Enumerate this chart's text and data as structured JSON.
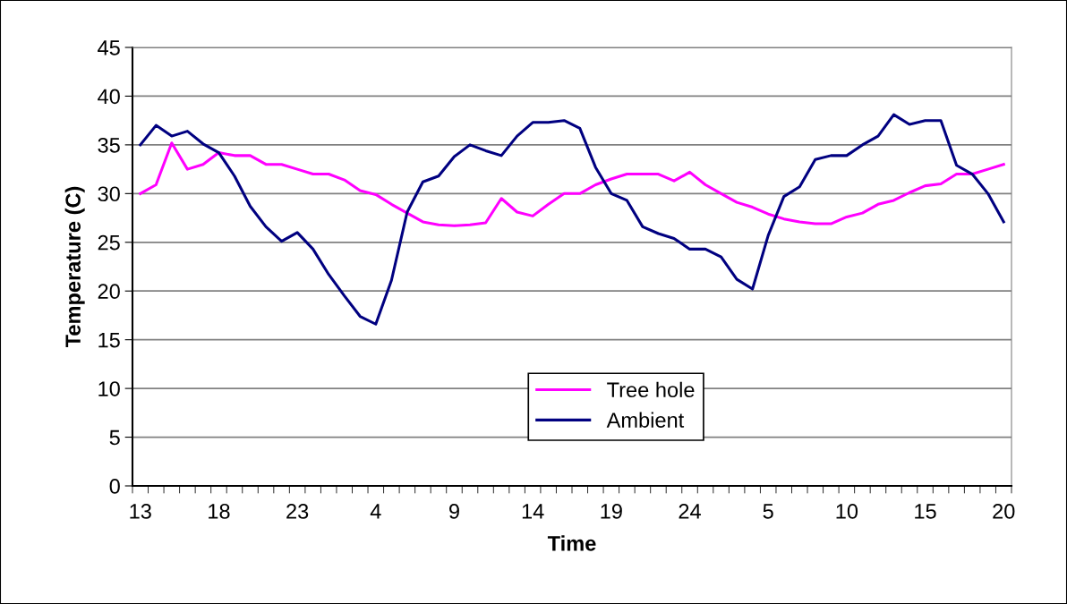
{
  "chart_data": {
    "type": "line",
    "xlabel": "Time",
    "ylabel": "Temperature (C)",
    "categories": [
      "13",
      null,
      null,
      null,
      null,
      "18",
      null,
      null,
      null,
      null,
      "23",
      null,
      null,
      null,
      null,
      "4",
      null,
      null,
      null,
      null,
      "9",
      null,
      null,
      null,
      null,
      "14",
      null,
      null,
      null,
      null,
      "19",
      null,
      null,
      null,
      null,
      "24",
      null,
      null,
      null,
      null,
      "5",
      null,
      null,
      null,
      null,
      "10",
      null,
      null,
      null,
      null,
      "15",
      null,
      null,
      null,
      null,
      "20"
    ],
    "series": [
      {
        "name": "Tree hole",
        "color": "#ff00ff",
        "values": [
          30.0,
          30.9,
          35.2,
          32.5,
          33.0,
          34.2,
          33.9,
          33.9,
          33.0,
          33.0,
          32.5,
          32.0,
          32.0,
          31.4,
          30.3,
          29.9,
          28.9,
          28.0,
          27.1,
          26.8,
          26.7,
          26.8,
          27.0,
          29.5,
          28.1,
          27.7,
          28.9,
          30.0,
          30.0,
          30.9,
          31.5,
          32.0,
          32.0,
          32.0,
          31.3,
          32.2,
          30.9,
          30.0,
          29.1,
          28.6,
          27.9,
          27.4,
          27.1,
          26.9,
          26.9,
          27.6,
          28.0,
          28.9,
          29.3,
          30.1,
          30.8,
          31.0,
          32.0,
          32.0,
          32.5,
          33.0
        ]
      },
      {
        "name": "Ambient",
        "color": "#000080",
        "values": [
          35.0,
          37.0,
          35.9,
          36.4,
          35.1,
          34.2,
          31.8,
          28.7,
          26.6,
          25.1,
          26.0,
          24.3,
          21.7,
          19.5,
          17.4,
          16.6,
          21.1,
          28.1,
          31.2,
          31.8,
          33.8,
          35.0,
          34.4,
          33.9,
          35.9,
          37.3,
          37.3,
          37.5,
          36.7,
          32.7,
          30.0,
          29.3,
          26.6,
          25.9,
          25.4,
          24.3,
          24.3,
          23.5,
          21.2,
          20.2,
          25.7,
          29.7,
          30.7,
          33.5,
          33.9,
          33.9,
          35.0,
          35.9,
          38.1,
          37.1,
          37.5,
          37.5,
          32.9,
          32.0,
          30.0,
          27.1
        ]
      }
    ],
    "ylim": [
      0,
      45
    ],
    "yticks": [
      0,
      5,
      10,
      15,
      20,
      25,
      30,
      35,
      40,
      45
    ],
    "grid": "y",
    "legend": "bottom",
    "marker": "none",
    "line_style": "solid"
  }
}
